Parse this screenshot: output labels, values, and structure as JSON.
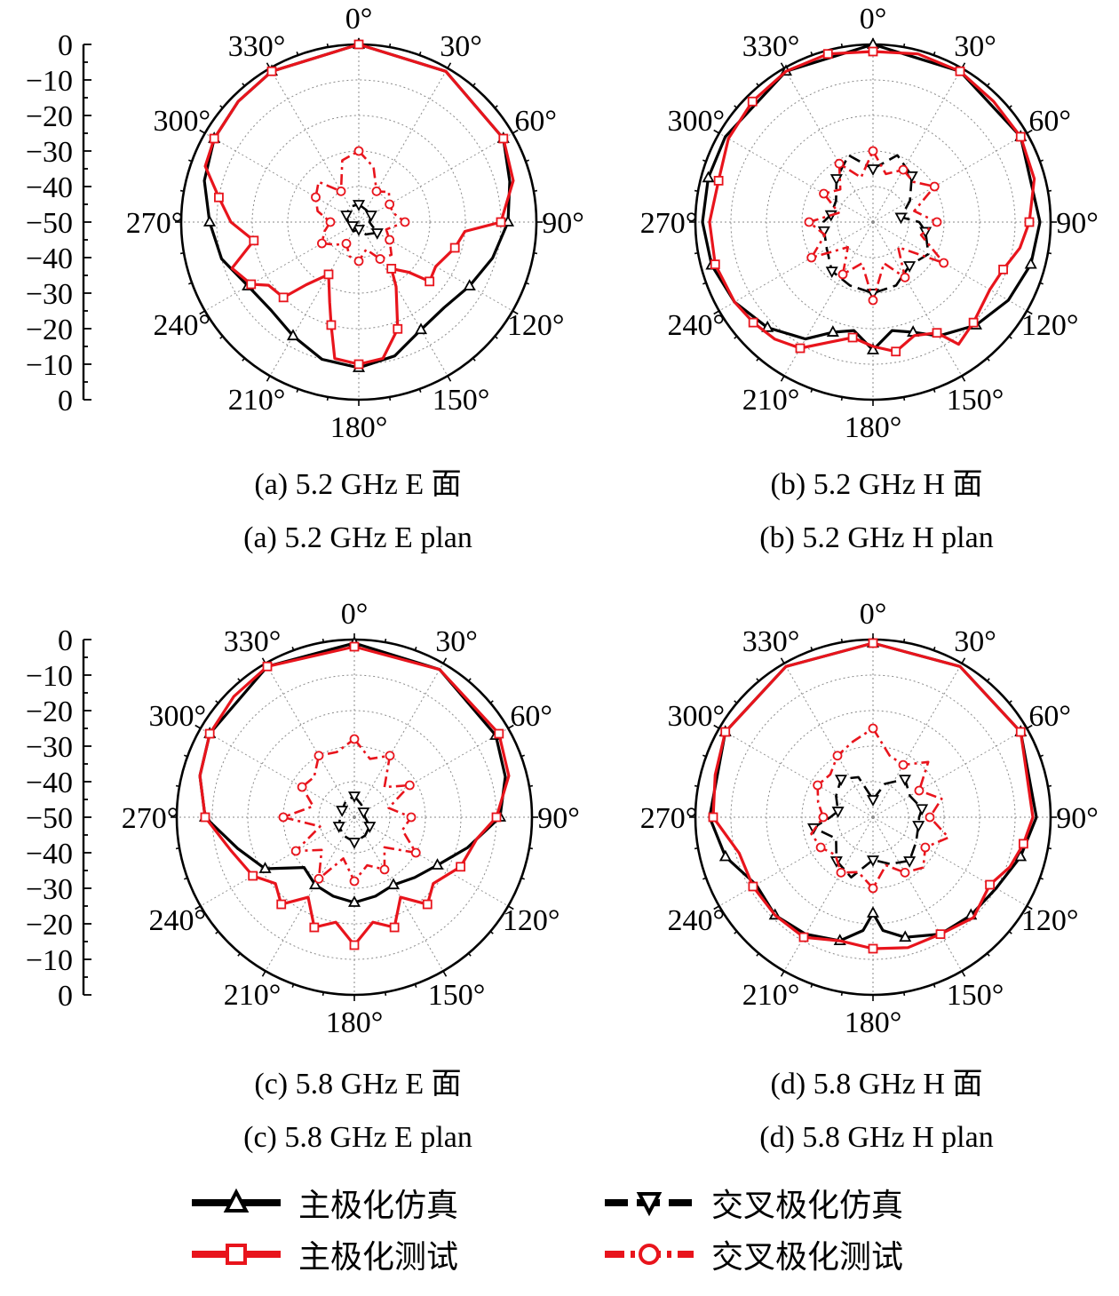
{
  "radial_tick_labels": [
    "0",
    "−10",
    "−20",
    "−30",
    "−40",
    "−50",
    "−40",
    "−30",
    "−20",
    "−10",
    "0"
  ],
  "angle_labels": [
    "0°",
    "30°",
    "60°",
    "90°",
    "120°",
    "150°",
    "180°",
    "210°",
    "240°",
    "270°",
    "300°",
    "330°"
  ],
  "captions": {
    "a": [
      "(a) 5.2 GHz E 面",
      "(a) 5.2 GHz E plan"
    ],
    "b": [
      "(b) 5.2 GHz H 面",
      "(b) 5.2 GHz H plan"
    ],
    "c": [
      "(c) 5.8 GHz E 面",
      "(c) 5.8 GHz E plan"
    ],
    "d": [
      "(d) 5.8 GHz H 面",
      "(d) 5.8 GHz H plan"
    ]
  },
  "legend": [
    {
      "label": "主极化仿真",
      "color": "#000000",
      "marker": "triangle-up",
      "dash": "solid"
    },
    {
      "label": "交叉极化仿真",
      "color": "#000000",
      "marker": "triangle-down",
      "dash": "dashed"
    },
    {
      "label": "主极化测试",
      "color": "#e8141c",
      "marker": "square",
      "dash": "solid"
    },
    {
      "label": "交叉极化测试",
      "color": "#e8141c",
      "marker": "circle",
      "dash": "dash-dot"
    }
  ],
  "colors": {
    "black": "#000000",
    "red": "#e8141c",
    "grid": "#8a8a8a"
  },
  "chart_data": [
    {
      "type": "polar-line",
      "id": "a",
      "r_range": [
        -50,
        0
      ],
      "theta_direction": "clockwise",
      "theta_zero": "top",
      "series": [
        {
          "name": "主极化仿真",
          "theta": [
            0,
            30,
            60,
            75,
            90,
            105,
            120,
            135,
            150,
            165,
            180,
            195,
            210,
            225,
            240,
            255,
            270,
            285,
            300,
            315,
            330
          ],
          "r": [
            0,
            -1,
            -3,
            -6,
            -8,
            -11,
            -14,
            -16,
            -15,
            -11,
            -9,
            -10,
            -13,
            -15,
            -14,
            -10,
            -8,
            -5,
            -3,
            -2,
            -1
          ]
        },
        {
          "name": "主极化测试",
          "theta": [
            0,
            30,
            60,
            75,
            90,
            95,
            105,
            120,
            130,
            135,
            145,
            150,
            160,
            170,
            180,
            190,
            195,
            200,
            210,
            220,
            225,
            235,
            240,
            250,
            260,
            270,
            280,
            290,
            300,
            315,
            330
          ],
          "r": [
            0,
            -1,
            -3,
            -5,
            -10,
            -20,
            -22,
            -25,
            -24,
            -30,
            -34,
            -29,
            -18,
            -11,
            -10,
            -11,
            -20,
            -26,
            -33,
            -27,
            -20,
            -19,
            -15,
            -12,
            -20,
            -14,
            -10,
            -4,
            -3,
            -2,
            -1
          ]
        },
        {
          "name": "交叉极化仿真",
          "theta": [
            0,
            30,
            60,
            90,
            120,
            150,
            180,
            210,
            240,
            270,
            300,
            330
          ],
          "r": [
            -45,
            -46,
            -46,
            -47,
            -44,
            -46,
            -48,
            -47,
            -48,
            -47,
            -46,
            -45
          ]
        },
        {
          "name": "交叉极化测试",
          "theta": [
            0,
            15,
            30,
            45,
            60,
            75,
            90,
            105,
            120,
            135,
            150,
            165,
            180,
            195,
            210,
            225,
            240,
            255,
            270,
            285,
            300,
            315,
            330,
            345
          ],
          "r": [
            -30,
            -34,
            -40,
            -38,
            -40,
            -40,
            -37,
            -42,
            -40,
            -37,
            -38,
            -42,
            -39,
            -40,
            -43,
            -41,
            -38,
            -40,
            -42,
            -38,
            -36,
            -34,
            -40,
            -32
          ]
        }
      ]
    },
    {
      "type": "polar-line",
      "id": "b",
      "r_range": [
        -50,
        0
      ],
      "theta_direction": "clockwise",
      "theta_zero": "top",
      "series": [
        {
          "name": "主极化仿真",
          "theta": [
            0,
            30,
            60,
            90,
            105,
            120,
            135,
            150,
            160,
            170,
            180,
            190,
            200,
            210,
            225,
            240,
            255,
            270,
            285,
            300,
            330
          ],
          "r": [
            0,
            -1,
            -2,
            -3,
            -4,
            -6,
            -9,
            -13,
            -17,
            -19,
            -14,
            -19,
            -17,
            -12,
            -8,
            -5,
            -3,
            -2,
            -2,
            -2,
            -1
          ]
        },
        {
          "name": "主极化测试",
          "theta": [
            0,
            15,
            30,
            45,
            60,
            75,
            90,
            100,
            110,
            120,
            135,
            145,
            150,
            160,
            170,
            180,
            190,
            200,
            210,
            220,
            230,
            240,
            255,
            270,
            285,
            300,
            315,
            330,
            345
          ],
          "r": [
            -2,
            -1,
            -1,
            -2,
            -2,
            -3,
            -6,
            -8,
            -11,
            -12,
            -10,
            -8,
            -14,
            -16,
            -13,
            -15,
            -17,
            -14,
            -9,
            -7,
            -6,
            -5,
            -4,
            -4,
            -5,
            -3,
            -2,
            -1,
            -1
          ]
        },
        {
          "name": "交叉极化仿真",
          "theta": [
            0,
            20,
            40,
            60,
            80,
            90,
            100,
            120,
            140,
            160,
            180,
            200,
            220,
            240,
            260,
            270,
            280,
            300,
            320,
            340
          ],
          "r": [
            -35,
            -30,
            -33,
            -38,
            -42,
            -37,
            -35,
            -32,
            -34,
            -31,
            -30,
            -31,
            -32,
            -35,
            -36,
            -36,
            -38,
            -38,
            -34,
            -30
          ]
        },
        {
          "name": "交叉极化测试",
          "theta": [
            0,
            15,
            30,
            45,
            60,
            75,
            90,
            105,
            120,
            135,
            150,
            165,
            180,
            195,
            210,
            225,
            240,
            255,
            270,
            285,
            300,
            315,
            330,
            345
          ],
          "r": [
            -30,
            -36,
            -33,
            -34,
            -30,
            -38,
            -32,
            -36,
            -27,
            -40,
            -32,
            -38,
            -28,
            -38,
            -33,
            -40,
            -30,
            -36,
            -32,
            -40,
            -34,
            -37,
            -31,
            -37
          ]
        }
      ]
    },
    {
      "type": "polar-line",
      "id": "c",
      "r_range": [
        -50,
        0
      ],
      "theta_direction": "clockwise",
      "theta_zero": "top",
      "series": [
        {
          "name": "主极化仿真",
          "theta": [
            0,
            30,
            60,
            75,
            90,
            105,
            120,
            135,
            150,
            165,
            180,
            195,
            210,
            225,
            240,
            255,
            270,
            285,
            300,
            330
          ],
          "r": [
            -1,
            -2,
            -4,
            -6,
            -9,
            -17,
            -23,
            -26,
            -28,
            -27,
            -26,
            -27,
            -28,
            -30,
            -21,
            -16,
            -8,
            -5,
            -3,
            -1
          ]
        },
        {
          "name": "主极化测试",
          "theta": [
            0,
            30,
            60,
            75,
            90,
            100,
            115,
            130,
            140,
            150,
            160,
            170,
            180,
            190,
            200,
            210,
            220,
            230,
            240,
            255,
            270,
            285,
            300,
            315,
            330
          ],
          "r": [
            -2,
            -2,
            -3,
            -5,
            -10,
            -15,
            -17,
            -21,
            -18,
            -24,
            -17,
            -20,
            -14,
            -20,
            -17,
            -24,
            -18,
            -21,
            -17,
            -14,
            -8,
            -5,
            -3,
            -2,
            -1
          ]
        },
        {
          "name": "交叉极化仿真",
          "theta": [
            0,
            30,
            60,
            90,
            120,
            150,
            180,
            210,
            240,
            270,
            300,
            330
          ],
          "r": [
            -44,
            -46,
            -47,
            -47,
            -45,
            -44,
            -43,
            -44,
            -45,
            -46,
            -46,
            -45
          ]
        },
        {
          "name": "交叉极化测试",
          "theta": [
            0,
            15,
            30,
            45,
            60,
            75,
            90,
            105,
            120,
            135,
            150,
            165,
            180,
            195,
            210,
            225,
            240,
            255,
            270,
            285,
            300,
            315,
            330,
            345
          ],
          "r": [
            -28,
            -33,
            -30,
            -38,
            -32,
            -40,
            -34,
            -36,
            -30,
            -38,
            -33,
            -36,
            -32,
            -38,
            -30,
            -37,
            -31,
            -40,
            -30,
            -38,
            -33,
            -34,
            -30,
            -31
          ]
        }
      ]
    },
    {
      "type": "polar-line",
      "id": "d",
      "r_range": [
        -50,
        0
      ],
      "theta_direction": "clockwise",
      "theta_zero": "top",
      "series": [
        {
          "name": "主极化仿真",
          "theta": [
            0,
            30,
            60,
            90,
            105,
            120,
            135,
            150,
            165,
            175,
            180,
            185,
            195,
            210,
            225,
            240,
            255,
            270,
            300,
            330
          ],
          "r": [
            -1,
            -1,
            -2,
            -4,
            -7,
            -10,
            -11,
            -12,
            -15,
            -18,
            -23,
            -18,
            -14,
            -12,
            -11,
            -12,
            -7,
            -4,
            -2,
            -1
          ]
        },
        {
          "name": "主极化测试",
          "theta": [
            0,
            30,
            60,
            90,
            100,
            110,
            120,
            135,
            150,
            165,
            180,
            195,
            210,
            225,
            240,
            255,
            270,
            285,
            300,
            330
          ],
          "r": [
            -1,
            -1,
            -2,
            -5,
            -7,
            -9,
            -12,
            -10,
            -12,
            -12,
            -13,
            -14,
            -11,
            -11,
            -11,
            -11,
            -5,
            -4,
            -2,
            -1
          ]
        },
        {
          "name": "交叉极化仿真",
          "theta": [
            0,
            20,
            40,
            60,
            80,
            90,
            100,
            120,
            140,
            160,
            180,
            200,
            220,
            240,
            260,
            270,
            280,
            300,
            320,
            340
          ],
          "r": [
            -45,
            -40,
            -36,
            -38,
            -36,
            -37,
            -37,
            -36,
            -34,
            -36,
            -38,
            -32,
            -34,
            -38,
            -33,
            -38,
            -40,
            -38,
            -36,
            -38
          ]
        },
        {
          "name": "交叉极化测试",
          "theta": [
            0,
            15,
            30,
            45,
            60,
            75,
            90,
            105,
            120,
            135,
            150,
            165,
            180,
            195,
            210,
            225,
            240,
            255,
            270,
            285,
            300,
            315,
            330,
            345
          ],
          "r": [
            -25,
            -32,
            -33,
            -28,
            -35,
            -30,
            -34,
            -28,
            -33,
            -30,
            -32,
            -36,
            -30,
            -34,
            -32,
            -35,
            -33,
            -32,
            -36,
            -34,
            -32,
            -33,
            -30,
            -28
          ]
        }
      ]
    }
  ]
}
